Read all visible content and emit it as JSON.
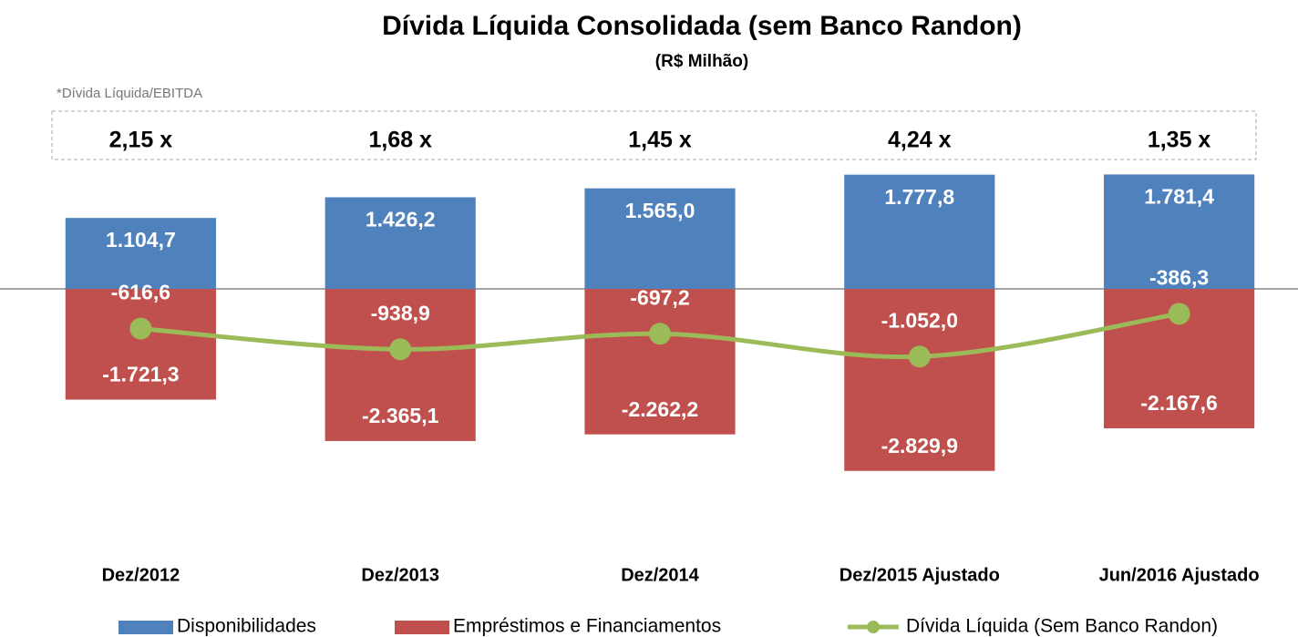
{
  "chart_data": {
    "type": "bar_line",
    "title": "Dívida Líquida Consolidada (sem Banco Randon)",
    "subtitle": "(R$ Milhão)",
    "note": "*Dívida Líquida/EBITDA",
    "annotations": [
      "2,15 x",
      "1,68 x",
      "1,45 x",
      "4,24 x",
      "1,35 x"
    ],
    "categories": [
      "Dez/2012",
      "Dez/2013",
      "Dez/2014",
      "Dez/2015 Ajustado",
      "Jun/2016 Ajustado"
    ],
    "ylim": [
      -3500,
      2000
    ],
    "series": [
      {
        "name": "Disponibilidades",
        "color": "#4f81bd",
        "kind": "bar",
        "values": [
          1104.7,
          1426.2,
          1565.0,
          1777.8,
          1781.4
        ],
        "value_labels": [
          "1.104,7",
          "1.426,2",
          "1.565,0",
          "1.777,8",
          "1.781,4"
        ]
      },
      {
        "name": "Empréstimos e Financiamentos",
        "color": "#c0504d",
        "kind": "bar",
        "values": [
          -1721.3,
          -2365.1,
          -2262.2,
          -2829.9,
          -2167.6
        ],
        "value_labels": [
          "-1.721,3",
          "-2.365,1",
          "-2.262,2",
          "-2.829,9",
          "-2.167,6"
        ]
      },
      {
        "name": "Dívida Líquida (Sem Banco Randon)",
        "color": "#9bbb59",
        "kind": "line",
        "values": [
          -616.6,
          -938.9,
          -697.2,
          -1052.0,
          -386.3
        ],
        "value_labels": [
          "-616,6",
          "-938,9",
          "-697,2",
          "-1.052,0",
          "-386,3"
        ]
      }
    ]
  }
}
